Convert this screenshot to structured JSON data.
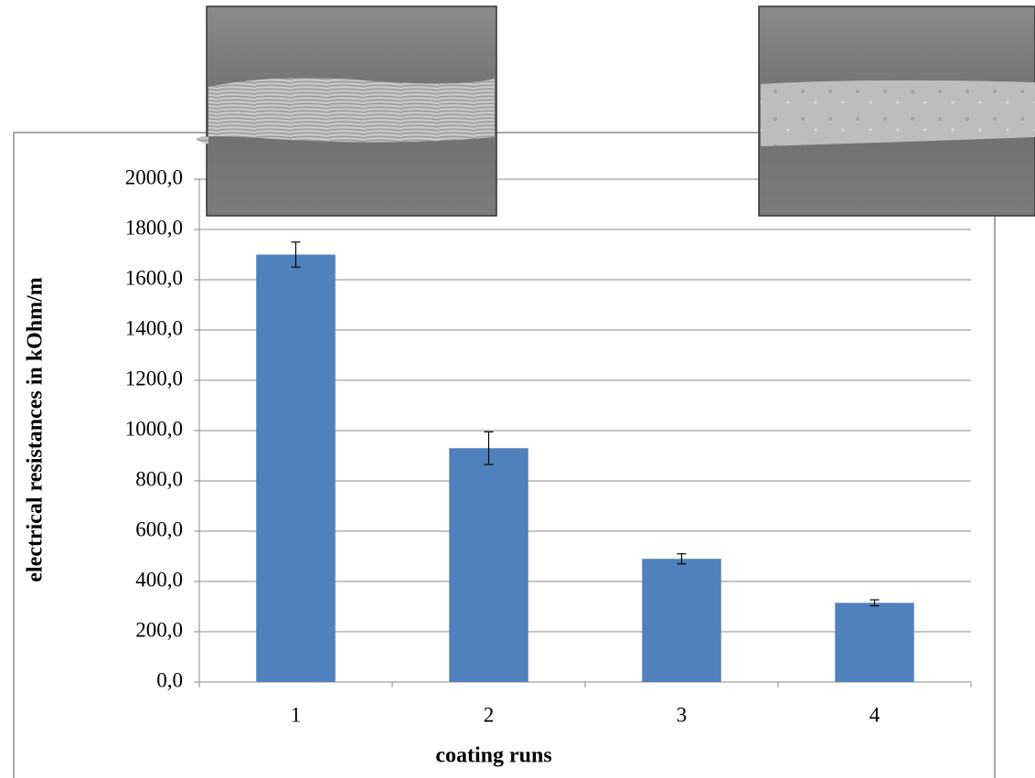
{
  "chart_data": {
    "type": "bar",
    "x_label": "coating runs",
    "y_label": "electrical resistances  in kOhm/m",
    "categories": [
      "1",
      "2",
      "3",
      "4"
    ],
    "values": [
      1700,
      930,
      490,
      315
    ],
    "errors": [
      50,
      65,
      20,
      12
    ],
    "color": "#4f81bd",
    "ylim": [
      0,
      2000
    ],
    "yticks": [
      {
        "value": 0,
        "label": "0,0"
      },
      {
        "value": 200,
        "label": "200,0"
      },
      {
        "value": 400,
        "label": "400,0"
      },
      {
        "value": 600,
        "label": "600,0"
      },
      {
        "value": 800,
        "label": "800,0"
      },
      {
        "value": 1000,
        "label": "1000,0"
      },
      {
        "value": 1200,
        "label": "1200,0"
      },
      {
        "value": 1400,
        "label": "1400,0"
      },
      {
        "value": 1600,
        "label": "1600,0"
      },
      {
        "value": 1800,
        "label": "1800,0"
      },
      {
        "value": 2000,
        "label": "2000,0"
      }
    ],
    "grid": true
  }
}
